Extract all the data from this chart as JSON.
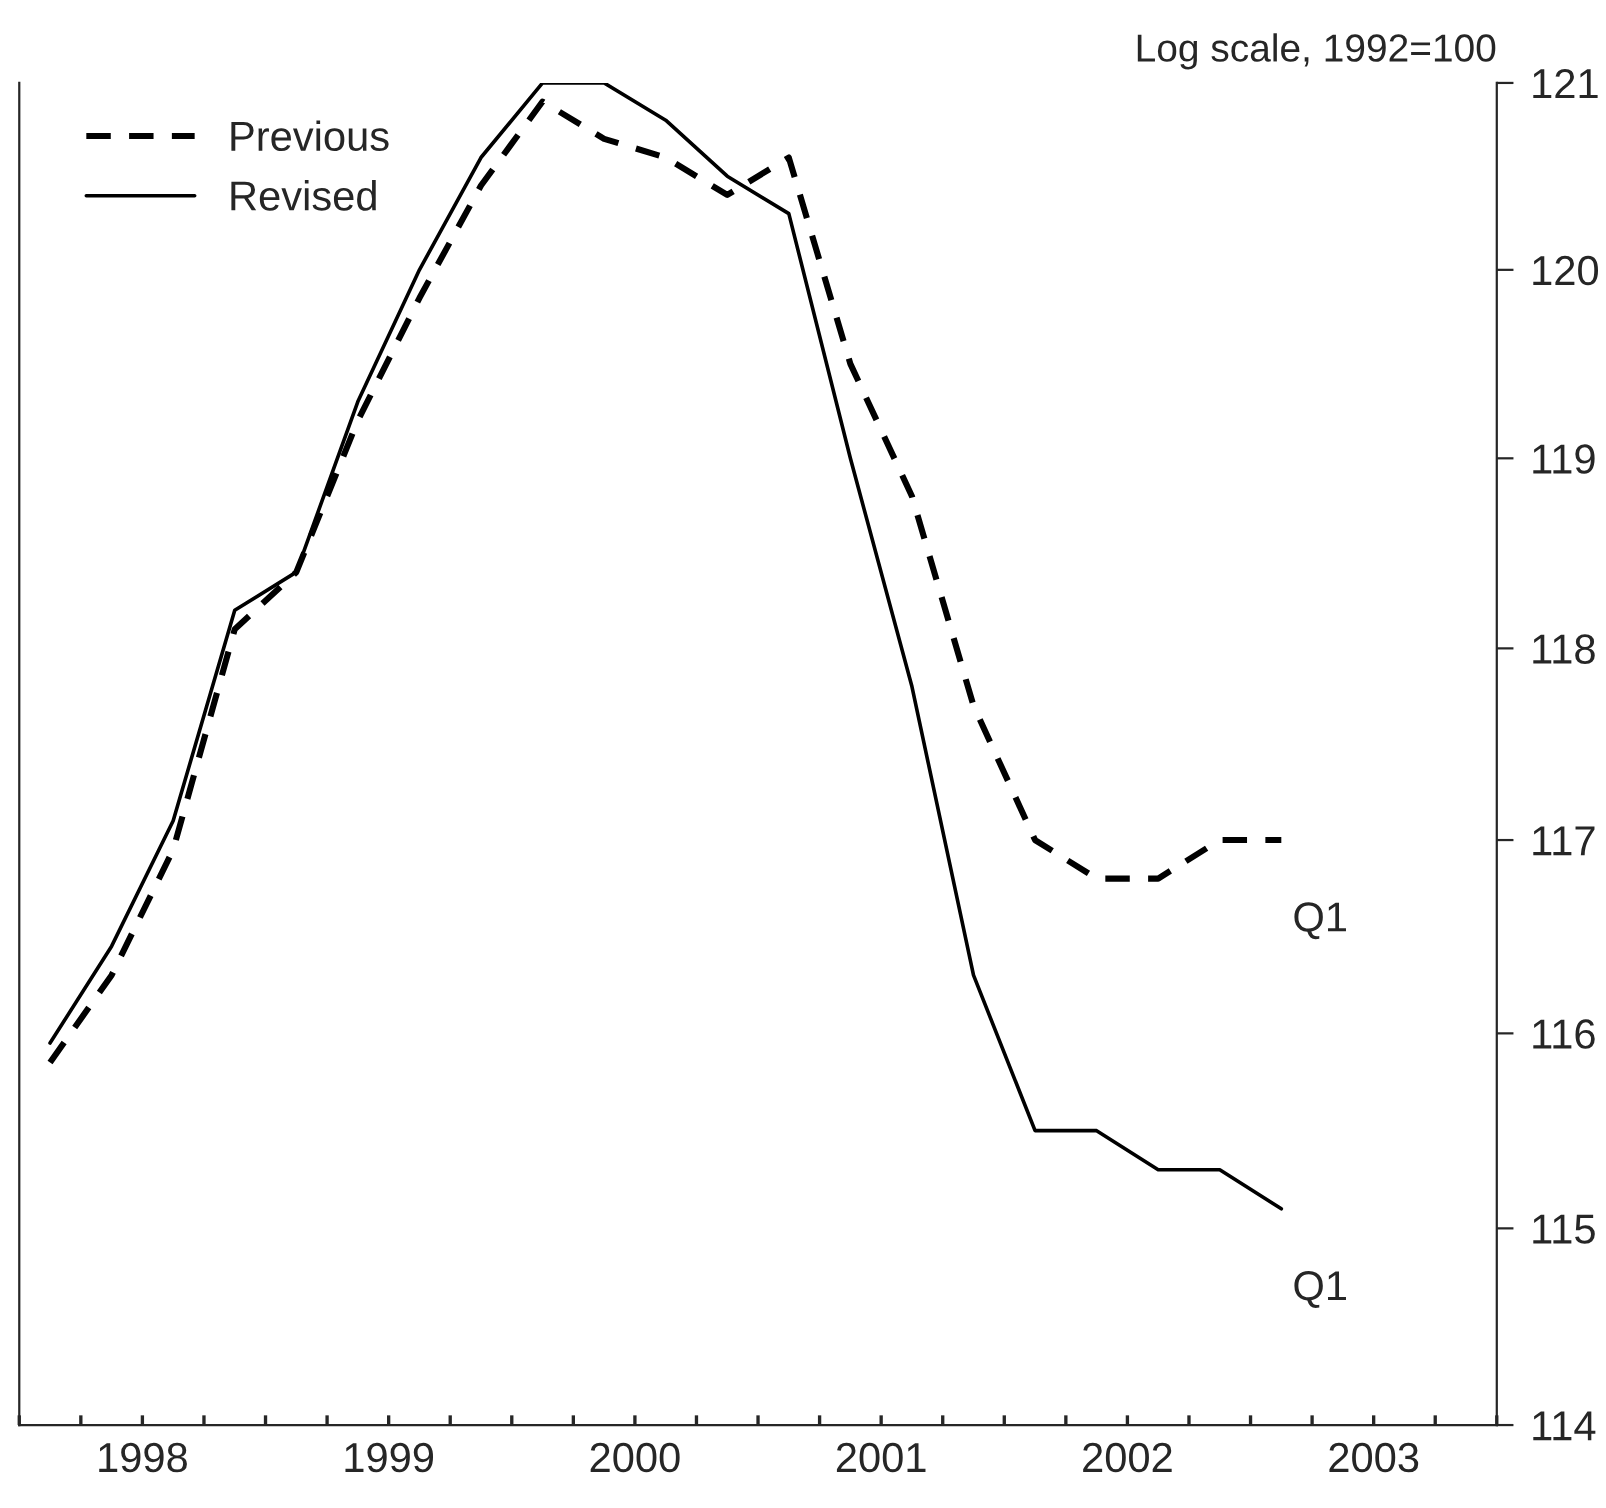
{
  "chart_data": {
    "type": "line",
    "ylabel": "Log scale, 1992=100",
    "log": true,
    "x": [
      1998.125,
      1998.375,
      1998.625,
      1998.875,
      1999.125,
      1999.375,
      1999.625,
      1999.875,
      2000.125,
      2000.375,
      2000.625,
      2000.875,
      2001.125,
      2001.375,
      2001.625,
      2001.875,
      2002.125,
      2002.375,
      2002.625,
      2002.875,
      2003.125
    ],
    "series": [
      {
        "name": "Previous",
        "color": "#000000",
        "line_style": "dashed",
        "values": [
          115.85,
          116.3,
          116.95,
          118.1,
          118.4,
          119.2,
          119.85,
          120.45,
          120.9,
          120.7,
          120.6,
          120.4,
          120.6,
          119.5,
          118.8,
          117.7,
          117.0,
          116.8,
          116.8,
          117.0,
          117.0
        ]
      },
      {
        "name": "Revised",
        "color": "#000000",
        "line_style": "solid",
        "values": [
          115.95,
          116.45,
          117.1,
          118.2,
          118.4,
          119.3,
          120.0,
          120.6,
          121.0,
          121.0,
          120.8,
          120.5,
          120.3,
          119.0,
          117.8,
          116.3,
          115.5,
          115.5,
          115.3,
          115.3,
          115.1
        ]
      }
    ],
    "annotations": [
      {
        "text": "Q1",
        "x": 2003.125,
        "y": 117.0
      },
      {
        "text": "Q1",
        "x": 2003.125,
        "y": 115.1
      }
    ],
    "xlim": [
      1998,
      2004
    ],
    "xticks": [
      {
        "value": 1998,
        "label": null
      },
      {
        "value": 1998.25,
        "label": null
      },
      {
        "value": 1998.5,
        "label": "1998"
      },
      {
        "value": 1998.75,
        "label": null
      },
      {
        "value": 1999,
        "label": null
      },
      {
        "value": 1999.25,
        "label": null
      },
      {
        "value": 1999.5,
        "label": "1999"
      },
      {
        "value": 1999.75,
        "label": null
      },
      {
        "value": 2000,
        "label": null
      },
      {
        "value": 2000.25,
        "label": null
      },
      {
        "value": 2000.5,
        "label": "2000"
      },
      {
        "value": 2000.75,
        "label": null
      },
      {
        "value": 2001,
        "label": null
      },
      {
        "value": 2001.25,
        "label": null
      },
      {
        "value": 2001.5,
        "label": "2001"
      },
      {
        "value": 2001.75,
        "label": null
      },
      {
        "value": 2002,
        "label": null
      },
      {
        "value": 2002.25,
        "label": null
      },
      {
        "value": 2002.5,
        "label": "2002"
      },
      {
        "value": 2002.75,
        "label": null
      },
      {
        "value": 2003,
        "label": null
      },
      {
        "value": 2003.25,
        "label": null
      },
      {
        "value": 2003.5,
        "label": "2003"
      },
      {
        "value": 2003.75,
        "label": null
      },
      {
        "value": 2004,
        "label": null
      }
    ],
    "ylim": [
      114,
      121
    ],
    "yticks": [
      114,
      115,
      116,
      117,
      118,
      119,
      120,
      121
    ],
    "grid": false,
    "legend": "top left"
  }
}
